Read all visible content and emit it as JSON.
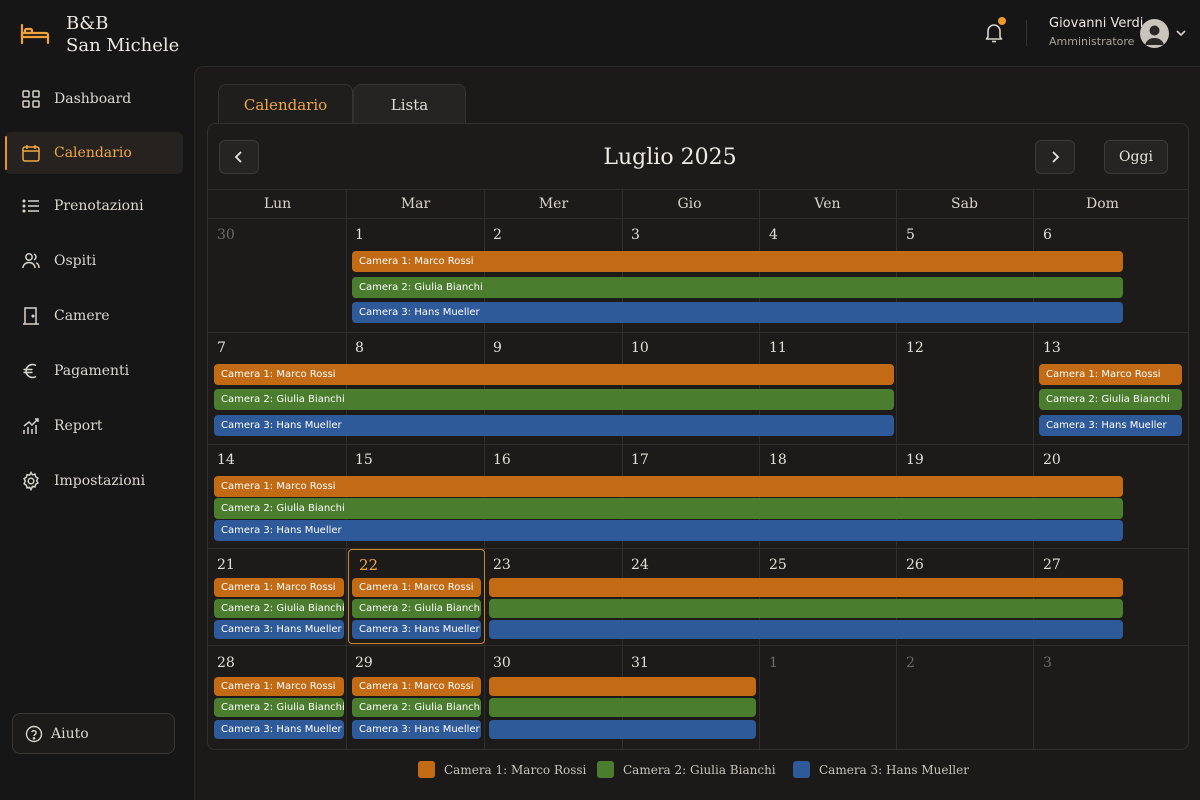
{
  "brand": {
    "line1": "B&B",
    "line2": "San Michele"
  },
  "sidebar": {
    "items": [
      {
        "label": "Dashboard",
        "icon": "grid-icon"
      },
      {
        "label": "Calendario",
        "icon": "calendar-icon",
        "active": true
      },
      {
        "label": "Prenotazioni",
        "icon": "list-icon"
      },
      {
        "label": "Ospiti",
        "icon": "users-icon"
      },
      {
        "label": "Camere",
        "icon": "door-icon"
      },
      {
        "label": "Pagamenti",
        "icon": "euro-icon"
      },
      {
        "label": "Report",
        "icon": "chart-icon"
      },
      {
        "label": "Impostazioni",
        "icon": "gear-icon"
      }
    ],
    "help_label": "Aiuto"
  },
  "header": {
    "user_name": "Giovanni Verdi",
    "user_role": "Amministratore"
  },
  "tabs": {
    "calendar": "Calendario",
    "list": "Lista"
  },
  "calendar": {
    "title": "Luglio 2025",
    "today_label": "Oggi",
    "weekdays": [
      "Lun",
      "Mar",
      "Mer",
      "Gio",
      "Ven",
      "Sab",
      "Dom"
    ],
    "weeks": [
      [
        "30",
        "1",
        "2",
        "3",
        "4",
        "5",
        "6"
      ],
      [
        "7",
        "8",
        "9",
        "10",
        "11",
        "12",
        "13"
      ],
      [
        "14",
        "15",
        "16",
        "17",
        "18",
        "19",
        "20"
      ],
      [
        "21",
        "22",
        "23",
        "24",
        "25",
        "26",
        "27"
      ],
      [
        "28",
        "29",
        "30",
        "31",
        "1",
        "2",
        "3"
      ]
    ],
    "bookings": {
      "room1": "Camera 1: Marco Rossi",
      "room2": "Camera 2: Giulia Bianchi",
      "room3": "Camera 3: Hans Mueller"
    }
  },
  "legend": [
    {
      "label": "Camera 1: Marco Rossi",
      "color": "#c26a14"
    },
    {
      "label": "Camera 2: Giulia Bianchi",
      "color": "#4a7e2e"
    },
    {
      "label": "Camera 3: Hans Mueller",
      "color": "#2f5a9a"
    }
  ],
  "colors": {
    "accent": "#f0a844",
    "room1": "#c26a14",
    "room2": "#4a7e2e",
    "room3": "#2f5a9a"
  }
}
